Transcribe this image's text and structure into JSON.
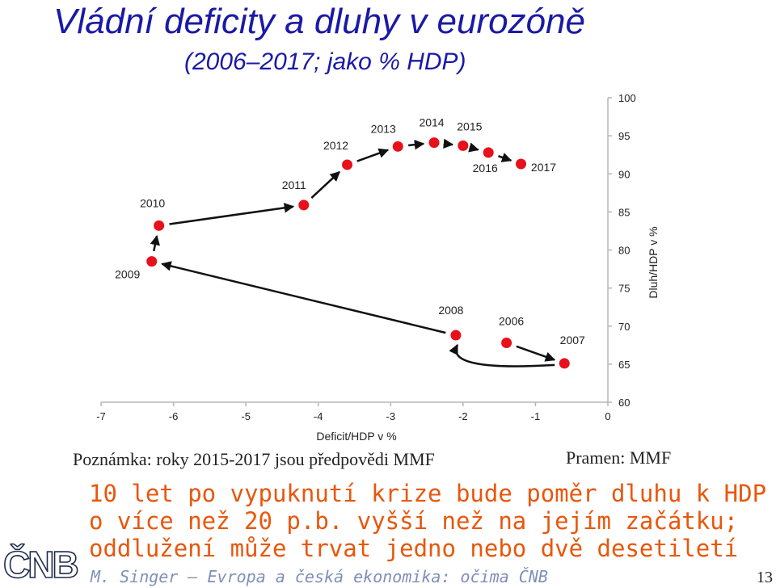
{
  "slide": {
    "title": "Vládní deficity a dluhy v eurozóně",
    "subtitle": "(2006–2017; jako % HDP)",
    "note": "Poznámka: roky 2015-2017 jsou předpovědi MMF",
    "source": "Pramen: MMF",
    "message_lines": [
      "10 let po vypuknutí krize bude poměr dluhu k HDP",
      "o více než 20 p.b. vyšší než na jejím začátku;",
      "oddlužení může trvat jedno nebo dvě desetiletí"
    ],
    "logo_text": "ČNB",
    "footer": "M. Singer – Evropa a česká ekonomika: očima ČNB",
    "page_number": "13"
  },
  "colors": {
    "title": "#1a1aa6",
    "message": "#e8570c",
    "footer": "#7f8fb8",
    "point": "#e8101a",
    "arrow": "#111111",
    "axis": "#b5b5b5"
  },
  "chart_data": {
    "type": "scatter",
    "connected": true,
    "xlabel": "Deficit/HDP v %",
    "ylabel": "Dluh/HDP v %",
    "xlim": [
      -7,
      0
    ],
    "ylim": [
      60,
      100
    ],
    "x_ticks": [
      "-7",
      "-6",
      "-5",
      "-4",
      "-3",
      "-2",
      "-1",
      "0"
    ],
    "y_ticks": [
      "60",
      "65",
      "70",
      "75",
      "80",
      "85",
      "90",
      "95",
      "100"
    ],
    "grid": false,
    "points": [
      {
        "label": "2006",
        "x": -1.4,
        "y": 67.8
      },
      {
        "label": "2007",
        "x": -0.6,
        "y": 65.1
      },
      {
        "label": "2008",
        "x": -2.1,
        "y": 68.8
      },
      {
        "label": "2009",
        "x": -6.3,
        "y": 78.5
      },
      {
        "label": "2010",
        "x": -6.2,
        "y": 83.2
      },
      {
        "label": "2011",
        "x": -4.2,
        "y": 85.9
      },
      {
        "label": "2012",
        "x": -3.6,
        "y": 91.2
      },
      {
        "label": "2013",
        "x": -2.9,
        "y": 93.6
      },
      {
        "label": "2014",
        "x": -2.4,
        "y": 94.1
      },
      {
        "label": "2015",
        "x": -2.0,
        "y": 93.7
      },
      {
        "label": "2016",
        "x": -1.65,
        "y": 92.8
      },
      {
        "label": "2017",
        "x": -1.2,
        "y": 91.3
      }
    ]
  }
}
